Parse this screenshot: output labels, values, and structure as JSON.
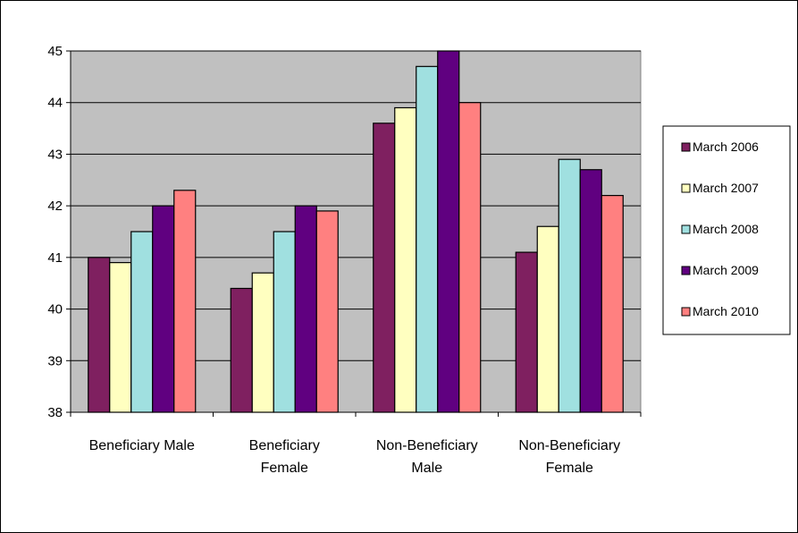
{
  "chart_data": {
    "type": "bar",
    "title": "",
    "xlabel": "",
    "ylabel": "",
    "ylim": [
      38,
      45
    ],
    "yticks": [
      "38",
      "39",
      "40",
      "41",
      "42",
      "43",
      "44",
      "45"
    ],
    "grid": true,
    "legend_position": "right",
    "plot_background": "#c0c0c0",
    "categories": [
      [
        "Beneficiary Male"
      ],
      [
        "Beneficiary",
        "Female"
      ],
      [
        "Non-Beneficiary",
        "Male"
      ],
      [
        "Non-Beneficiary",
        "Female"
      ]
    ],
    "series": [
      {
        "name": "March 2006",
        "color": "#7f2060",
        "values": [
          41.0,
          40.4,
          43.6,
          41.1
        ]
      },
      {
        "name": "March 2007",
        "color": "#ffffc0",
        "values": [
          40.9,
          40.7,
          43.9,
          41.6
        ]
      },
      {
        "name": "March 2008",
        "color": "#a0e0e0",
        "values": [
          41.5,
          41.5,
          44.7,
          42.9
        ]
      },
      {
        "name": "March 2009",
        "color": "#600080",
        "values": [
          42.0,
          42.0,
          45.0,
          42.7
        ]
      },
      {
        "name": "March 2010",
        "color": "#ff8080",
        "values": [
          42.3,
          41.9,
          44.0,
          42.2
        ]
      }
    ]
  }
}
